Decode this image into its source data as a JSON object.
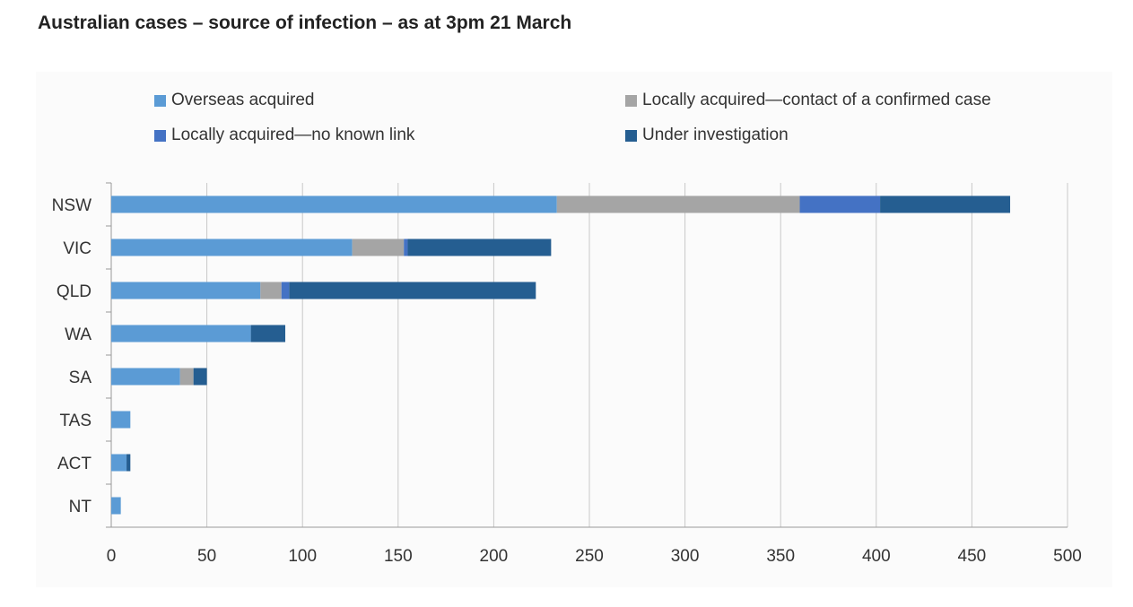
{
  "title": "Australian cases – source of infection – as at 3pm 21 March",
  "chart_data": {
    "type": "bar",
    "orientation": "horizontal",
    "stacked": true,
    "categories": [
      "NSW",
      "VIC",
      "QLD",
      "WA",
      "SA",
      "TAS",
      "ACT",
      "NT"
    ],
    "series": [
      {
        "name": "Overseas acquired",
        "color": "#5b9bd5",
        "values": [
          233,
          126,
          78,
          73,
          36,
          10,
          8,
          5
        ]
      },
      {
        "name": "Locally acquired—contact of a confirmed case",
        "color": "#a5a5a5",
        "values": [
          127,
          27,
          11,
          0,
          7,
          0,
          0,
          0
        ]
      },
      {
        "name": "Locally acquired—no known link",
        "color": "#4472c4",
        "values": [
          42,
          2,
          4,
          0,
          0,
          0,
          0,
          0
        ]
      },
      {
        "name": "Under investigation",
        "color": "#255e91",
        "values": [
          68,
          75,
          129,
          18,
          7,
          0,
          2,
          0
        ]
      }
    ],
    "xlim": [
      0,
      500
    ],
    "xticks": [
      "0",
      "50",
      "100",
      "150",
      "200",
      "250",
      "300",
      "350",
      "400",
      "450",
      "500"
    ],
    "grid": true,
    "legend_position": "top",
    "xlabel": "",
    "ylabel": ""
  }
}
